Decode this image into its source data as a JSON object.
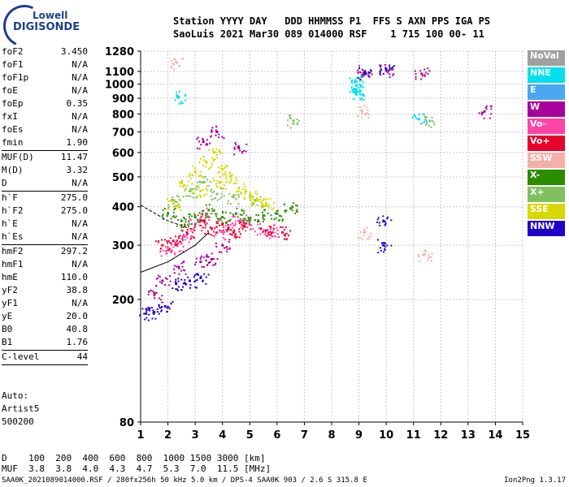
{
  "logo": {
    "line1": "Lowell",
    "line2": "DIGISONDE"
  },
  "header": {
    "line1": "Station YYYY DAY   DDD HHMMSS P1  FFS S AXN PPS IGA PS",
    "line2": "SaoLuis 2021 Mar30 089 014000 RSF    1 715 100 00- 11"
  },
  "params": [
    {
      "k": "foF2",
      "v": "3.450"
    },
    {
      "k": "foF1",
      "v": "N/A"
    },
    {
      "k": "foF1p",
      "v": "N/A"
    },
    {
      "k": "foE",
      "v": "N/A"
    },
    {
      "k": "foEp",
      "v": "0.35"
    },
    {
      "k": "fxI",
      "v": "N/A"
    },
    {
      "k": "foEs",
      "v": "N/A"
    },
    {
      "k": "fmin",
      "v": "1.90"
    },
    {
      "sep": true
    },
    {
      "k": "MUF(D)",
      "v": "11.47"
    },
    {
      "k": "M(D)",
      "v": "3.32"
    },
    {
      "k": "D",
      "v": "N/A"
    },
    {
      "sep": true
    },
    {
      "k": "h`F",
      "v": "275.0"
    },
    {
      "k": "h`F2",
      "v": "275.0"
    },
    {
      "k": "h`E",
      "v": "N/A"
    },
    {
      "k": "h`Es",
      "v": "N/A"
    },
    {
      "sep": true
    },
    {
      "k": "hmF2",
      "v": "297.2"
    },
    {
      "k": "hmF1",
      "v": "N/A"
    },
    {
      "k": "hmE",
      "v": "110.0"
    },
    {
      "k": "yF2",
      "v": "38.8"
    },
    {
      "k": "yF1",
      "v": "N/A"
    },
    {
      "k": "yE",
      "v": "20.0"
    },
    {
      "k": "B0",
      "v": "40.8"
    },
    {
      "k": "B1",
      "v": "1.76"
    },
    {
      "sep": true
    },
    {
      "k": "C-level",
      "v": "44"
    },
    {
      "sep": true
    }
  ],
  "autoscale": {
    "line1": "Auto:",
    "line2": "Artist5",
    "line3": "500200"
  },
  "legend": [
    {
      "label": "NoVal",
      "color": "#a0a0a0"
    },
    {
      "label": "NNE",
      "color": "#00e0f0"
    },
    {
      "label": "E",
      "color": "#4aa8f0"
    },
    {
      "label": "W",
      "color": "#a8009c"
    },
    {
      "label": "Vo-",
      "color": "#ff44a8"
    },
    {
      "label": "Vo+",
      "color": "#e8002c"
    },
    {
      "label": "SSW",
      "color": "#f4b0a8"
    },
    {
      "label": "X-",
      "color": "#2c8c00"
    },
    {
      "label": "X+",
      "color": "#80c060"
    },
    {
      "label": "SSE",
      "color": "#d8d800"
    },
    {
      "label": "NNW",
      "color": "#2000c8"
    }
  ],
  "chart_data": {
    "type": "scatter",
    "x_ticks": [
      "1",
      "2",
      "3",
      "4",
      "5",
      "6",
      "7",
      "8",
      "9",
      "10",
      "11",
      "12",
      "13",
      "14",
      "15"
    ],
    "y_ticks": [
      "80",
      "200",
      "300",
      "400",
      "500",
      "600",
      "700",
      "800",
      "900",
      "1000",
      "1100",
      "1280"
    ],
    "xlim": [
      1,
      15
    ],
    "ylim": [
      80,
      1280
    ],
    "ylim_scale": "log",
    "grid": true,
    "series": [
      {
        "name": "Vo-",
        "color": "#ff44a8",
        "points": [
          [
            2.0,
            290
          ],
          [
            2.3,
            300
          ],
          [
            2.6,
            320
          ],
          [
            3.0,
            350
          ],
          [
            3.4,
            380
          ],
          [
            3.8,
            330
          ],
          [
            4.2,
            340
          ],
          [
            4.6,
            360
          ],
          [
            5.0,
            350
          ],
          [
            5.4,
            340
          ],
          [
            5.8,
            330
          ]
        ]
      },
      {
        "name": "Vo+",
        "color": "#e8002c",
        "points": [
          [
            1.8,
            300
          ],
          [
            2.2,
            310
          ],
          [
            2.7,
            330
          ],
          [
            3.2,
            360
          ],
          [
            3.6,
            340
          ],
          [
            4.0,
            350
          ],
          [
            4.4,
            330
          ],
          [
            4.8,
            345
          ],
          [
            5.6,
            335
          ],
          [
            6.2,
            330
          ]
        ]
      },
      {
        "name": "W",
        "color": "#a8009c",
        "points": [
          [
            1.5,
            210
          ],
          [
            1.8,
            230
          ],
          [
            2.4,
            255
          ],
          [
            3.2,
            265
          ],
          [
            3.6,
            270
          ],
          [
            4.0,
            300
          ],
          [
            3.8,
            700
          ],
          [
            3.3,
            650
          ],
          [
            4.6,
            620
          ],
          [
            9.2,
            1100
          ],
          [
            10.0,
            1110
          ],
          [
            11.3,
            1080
          ],
          [
            13.6,
            815
          ]
        ]
      },
      {
        "name": "X-",
        "color": "#2c8c00",
        "points": [
          [
            2.0,
            380
          ],
          [
            2.5,
            360
          ],
          [
            3.0,
            370
          ],
          [
            3.5,
            390
          ],
          [
            4.0,
            370
          ],
          [
            4.5,
            380
          ],
          [
            5.0,
            365
          ],
          [
            5.5,
            375
          ],
          [
            6.0,
            380
          ],
          [
            6.5,
            395
          ]
        ]
      },
      {
        "name": "X+",
        "color": "#80c060",
        "points": [
          [
            2.2,
            420
          ],
          [
            2.8,
            450
          ],
          [
            3.3,
            480
          ],
          [
            3.8,
            440
          ],
          [
            4.4,
            430
          ],
          [
            5.2,
            420
          ],
          [
            6.6,
            760
          ],
          [
            11.6,
            760
          ]
        ]
      },
      {
        "name": "SSE",
        "color": "#d8d800",
        "points": [
          [
            2.2,
            410
          ],
          [
            2.6,
            470
          ],
          [
            3.0,
            520
          ],
          [
            3.4,
            560
          ],
          [
            3.7,
            600
          ],
          [
            4.0,
            530
          ],
          [
            4.3,
            500
          ],
          [
            4.6,
            460
          ],
          [
            5.0,
            430
          ],
          [
            5.3,
            420
          ],
          [
            5.6,
            410
          ],
          [
            3.2,
            450
          ],
          [
            3.9,
            480
          ]
        ]
      },
      {
        "name": "NNE",
        "color": "#00e0f0",
        "points": [
          [
            8.9,
            930
          ],
          [
            8.9,
            960
          ],
          [
            8.9,
            990
          ],
          [
            8.9,
            1020
          ],
          [
            2.4,
            910
          ],
          [
            11.2,
            770
          ]
        ]
      },
      {
        "name": "NNW",
        "color": "#2000c8",
        "points": [
          [
            1.2,
            180
          ],
          [
            1.5,
            182
          ],
          [
            1.9,
            190
          ],
          [
            2.3,
            225
          ],
          [
            2.8,
            230
          ],
          [
            3.2,
            235
          ],
          [
            9.2,
            1080
          ],
          [
            9.9,
            360
          ],
          [
            9.9,
            300
          ],
          [
            10.0,
            1120
          ]
        ]
      },
      {
        "name": "SSW",
        "color": "#f4b0a8",
        "points": [
          [
            2.3,
            1180
          ],
          [
            9.1,
            820
          ],
          [
            11.4,
            280
          ],
          [
            9.2,
            330
          ]
        ]
      }
    ],
    "trace_curve": [
      [
        1.0,
        245
      ],
      [
        2.0,
        265
      ],
      [
        3.0,
        300
      ],
      [
        3.5,
        330
      ]
    ],
    "trace_curve_dashed": [
      [
        1.0,
        405
      ],
      [
        2.0,
        360
      ],
      [
        2.8,
        340
      ]
    ]
  },
  "bottom": {
    "line1": "D    100  200  400  600  800  1000 1500 3000 [km]",
    "line2": "MUF  3.8  3.8  4.0  4.3  4.7  5.3  7.0  11.5 [MHz]"
  },
  "footer": {
    "left": "SAA0K_2021089014000.RSF / 280fx256h 50 kHz 5.0 km / DPS-4 SAA0K 903 / 2.6 S 315.8 E",
    "right": "Ion2Png 1.3.17"
  }
}
